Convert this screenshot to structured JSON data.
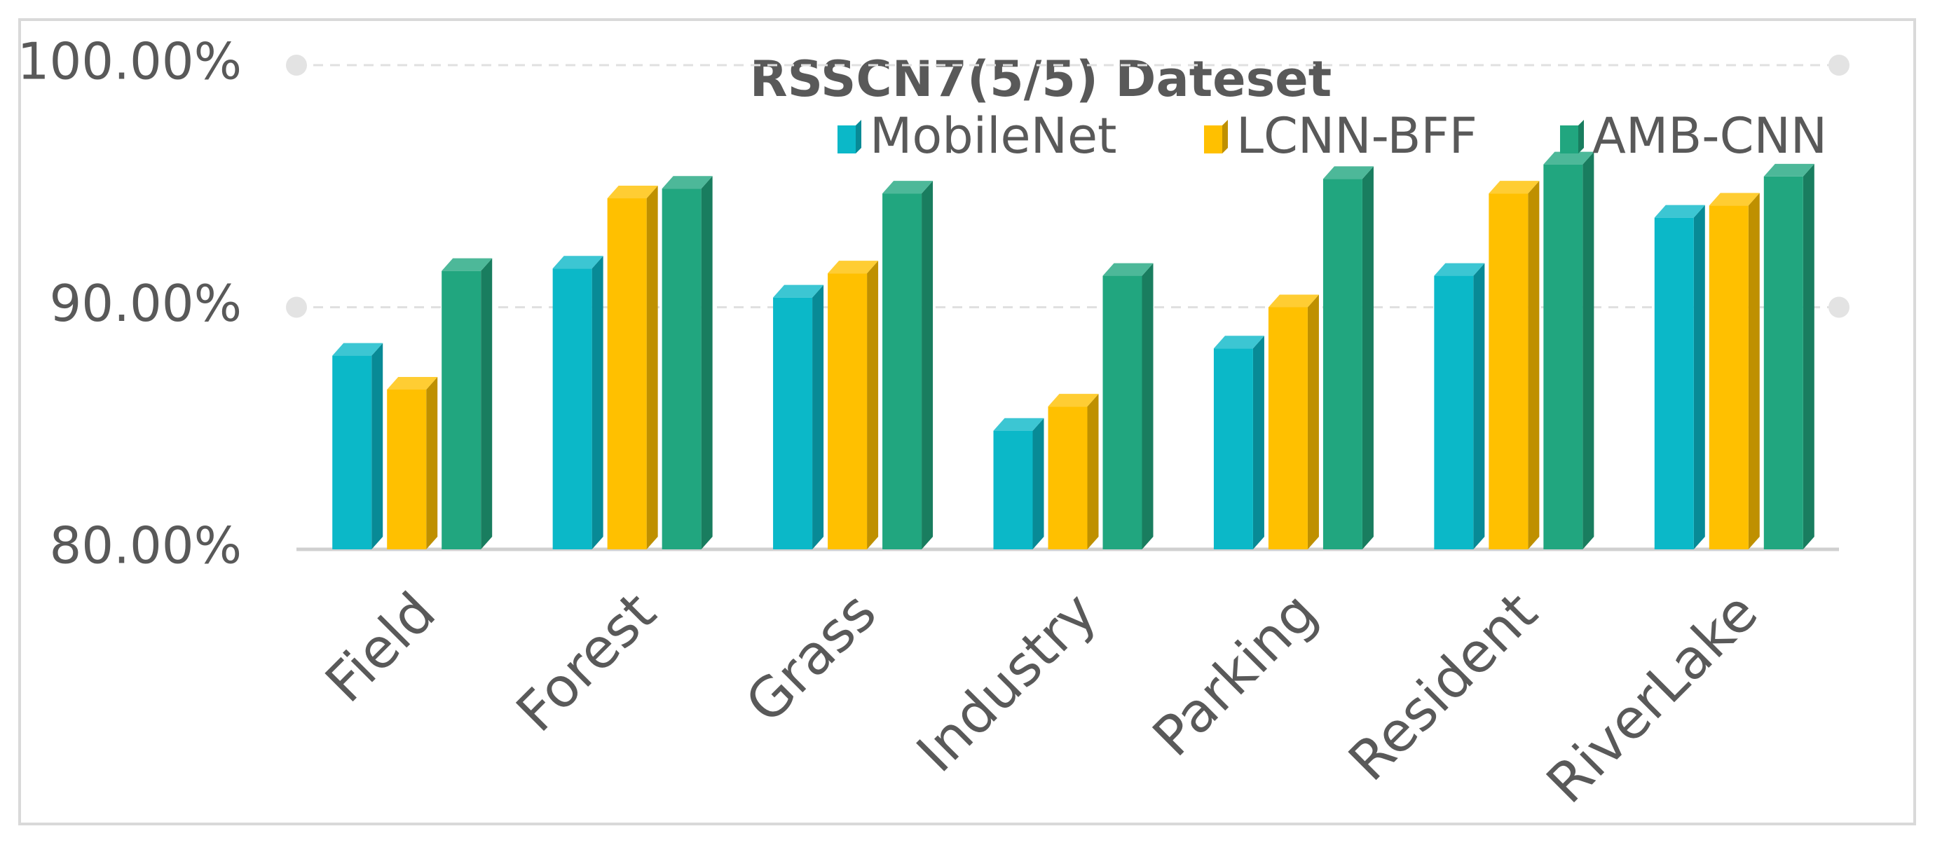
{
  "chart_data": {
    "type": "bar3d",
    "title": "RSSCN7(5/5) Dateset",
    "categories": [
      "Field",
      "Forest",
      "Grass",
      "Industry",
      "Parking",
      "Resident",
      "RiverLake"
    ],
    "series": [
      {
        "name": "MobileNet",
        "color": "#0bb8c8",
        "values": [
          88.0,
          91.6,
          90.4,
          84.9,
          88.3,
          91.3,
          93.7
        ]
      },
      {
        "name": "LCNN-BFF",
        "color": "#ffc000",
        "values": [
          86.6,
          94.5,
          91.4,
          85.9,
          90.0,
          94.7,
          94.2
        ]
      },
      {
        "name": "AMB-CNN",
        "color": "#21a67f",
        "values": [
          91.5,
          94.9,
          94.7,
          91.3,
          95.3,
          95.9,
          95.4
        ]
      }
    ],
    "ylim": [
      80,
      100
    ],
    "yticks": [
      {
        "value": 80,
        "label": "80.00%"
      },
      {
        "value": 90,
        "label": "90.00%"
      },
      {
        "value": 100,
        "label": "100.00%"
      }
    ],
    "grid": true,
    "legend": "top-right"
  }
}
